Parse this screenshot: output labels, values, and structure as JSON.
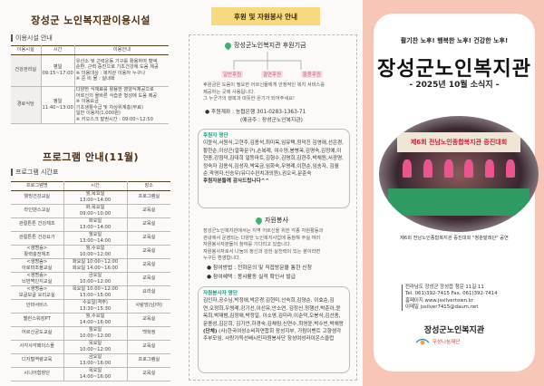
{
  "left": {
    "facility_title": "장성군 노인복지관이용시설",
    "facility_section": "이용시설 안내",
    "facility_headers": [
      "이용시설",
      "시간",
      "이용안내"
    ],
    "facilities": [
      {
        "name": "건강관리실",
        "days": "평일",
        "time": "09:15~17:00",
        "info": [
          "유산소 및 근력운동 기구를 활용하여 혈액",
          "순환, 근력 증진으로 기초건강에 도움 제공",
          "※ 이용대상 : 복지관 이용자 누구나",
          "※ 준 비 물 : 실내화"
        ]
      },
      {
        "name": "경로식당",
        "days": "평일",
        "time": "11:40~13:00",
        "info": [
          "다양한 식재료를 활용한 영양식제공으로",
          "어르신의 올바른 식습관 형성에 도움 제공",
          "※ 이용요금",
          "  기초생활수급 및 차상위계층(무료)",
          "  일반 이용자(1,000원)",
          "※ 키오스크 발권시간 : 09:00~12:50"
        ]
      }
    ],
    "program_title": "프로그램 안내(11월)",
    "program_section": "프로그램 시간표",
    "program_headers": [
      "프로그램명",
      "시간",
      "장소"
    ],
    "programs": [
      {
        "name": [
          "웰빙건강교실"
        ],
        "time": [
          "월,목요일",
          "13:00~14:00"
        ],
        "place": "프로그램실"
      },
      {
        "name": [
          "라인댄스교실"
        ],
        "time": [
          "화,목요일",
          "09:00~10:00"
        ],
        "place": "교육실"
      },
      {
        "name": [
          "관절튼튼 건강체조"
        ],
        "time": [
          "화요일",
          "13:00~14:00"
        ],
        "place": "교육실"
      },
      {
        "name": [
          "관절튼튼 건강요가"
        ],
        "time": [
          "월요일",
          "13:00~14:00"
        ],
        "place": "교육실"
      },
      {
        "name": [
          "<생명숨>",
          "활력충전체조"
        ],
        "time": [
          "월,수요일",
          "10:00~12:00"
        ],
        "place": "교육실"
      },
      {
        "name": [
          "<생명숨>",
          "아로마조몰교실"
        ],
        "time": [
          "화요일 10:00~12:00",
          "화요일 14:00~16:00"
        ],
        "place": "교육실"
      },
      {
        "name": [
          "<생명숨>",
          "뇌번쩍인지교실"
        ],
        "time": [
          "금요일",
          "10:00~12:00"
        ],
        "place": "교육실"
      },
      {
        "name": [
          "<생명숨>",
          "보글보글 요리교실"
        ],
        "time": [
          "목요일 10:00~12:00",
          "13:00~15:00"
        ],
        "place": "요리실"
      },
      {
        "name": [
          "안마서비스"
        ],
        "time": [
          "수요일(격주)",
          "13:30~15:30"
        ],
        "place": "사랑방(남/여)"
      },
      {
        "name": [
          "밸런스워킹PT"
        ],
        "time": [
          "월,수요일",
          "14:00~16:00"
        ],
        "place": "교육실"
      },
      {
        "name": [
          "어르신궁도교실"
        ],
        "time": [
          "월요일",
          "10:00~12:00"
        ],
        "place": "백학정"
      },
      {
        "name": [
          "사각사각페이스몰"
        ],
        "time": [
          "목요일",
          "10:00~12:00"
        ],
        "place": "교육실"
      },
      {
        "name": [
          "디지털역량교육"
        ],
        "time": [
          "금요일",
          "13:00~16:00"
        ],
        "place": "프로그램실"
      },
      {
        "name": [
          "시니어합창단"
        ],
        "time": [
          "목요일",
          "14:00~16:00"
        ],
        "place": "교육실"
      }
    ]
  },
  "middle": {
    "banner": "후원 및 자원봉사 안내",
    "fund_title": "장성군노인복지관 후원기금",
    "fund_types": [
      "일반후원",
      "결연후원",
      "물품후원"
    ],
    "fund_text": [
      "후원금은 도움이 필요한 어르신들에게 안정적인 복지 서비스를",
      "제공하는 곳에 사용됩니다.",
      "그 누군가의 행복과 따뜻한 온기가 되어주세요!"
    ],
    "account": "● 후원계좌 : 농협은행 301-0283-1363-71",
    "account_holder": "(예금주 : 장성군노인복지관)",
    "donor_title": "후원자 명단",
    "donors": "이윤식,서원식,고현주,김종석,최미옥,임유택,정덕진 김영애,선은경,황한순,이상곤(알파문구),손복례, 여수양,봉병옥,김명숙,김정예,이현종,강점덕,김대희 일등마트,김형수,김명희,김현주,박채원,서광명,정숙자 김용식,김성자,박옥금,임화숙,우명례,이현순,임송자, 김월순,곽영자,신승우(유디수완치과의원),권오국,문춘숙",
    "donor_thanks": "후원자분들께 감사드립니다^^",
    "volunteer_title": "자원봉사",
    "volunteer_text": [
      "장성군노인복지관에서는 지역 어르신을 위한 각종 자원활동과",
      "관내에서 운영되는 다양한 노인복지사업에 동참해 주실 여러",
      "자원봉사자분들의 참여를 기다리고 있습니다.",
      "자원봉사자로서 나눔의 정신과 강한 실천력이 있는 분이라면",
      "누구든 환영합니다."
    ],
    "volunteer_bullets": [
      "● 참여방법 : 전화문의 및 직접방문을 통한 신청",
      "● 참여혜택 : 봉사활동 실적 확인서 발급"
    ],
    "volunteer_list_title": "자원봉사자 명단",
    "volunteers": "김인자,공수님,박정애,박은경,김현미,선숙희,김양순, 이효순,김　연,오정희,우썽례,강기선,이선유,안소연, 김정신,정행선,박춘아,윤옥희,박재범,김정애,박정일, 이소영,김미라,이순덕,오봉식,김선종,문종성,김은희, 김가언,하경숙,김채림,신연수,최영윤,박수빈,박채랑",
    "group_label": "(단체)",
    "groups": " (사)한국여성소비자연합회 장성지부, 가람이벤트 고향생각 주부모임, 사랑가득선배시민자원봉사단 장성여성라이온스클럽"
  },
  "right": {
    "slogan": "활기찬 노후! 행복한 노후! 건강한 노후!",
    "title": "장성군노인복지관",
    "subtitle": "- 2025년 10월 소식지 -",
    "photo_banner": "제6회 전남노인종합복지관 증진대회",
    "caption": "제6회 전남노인종합복지관 증진대회 \"청춘발레단\" 공연",
    "address": [
      "전라남도 장성군 장성읍 청운 11길 11",
      "Tel. 061)392-7415  Fax. 061)392-7414",
      "홈페이지 www.jssilvertown.kr",
      "이메일 jssilver7415@daum.net"
    ],
    "org_name": "장성군노인복지관",
    "foundation": "무성나눔재단"
  },
  "colors": {
    "brown": "#4a2f12",
    "banner": "#f7d97f",
    "green": "#17a089",
    "pink_bg": "#f8c6b6",
    "pink_label": "#c0607a"
  }
}
